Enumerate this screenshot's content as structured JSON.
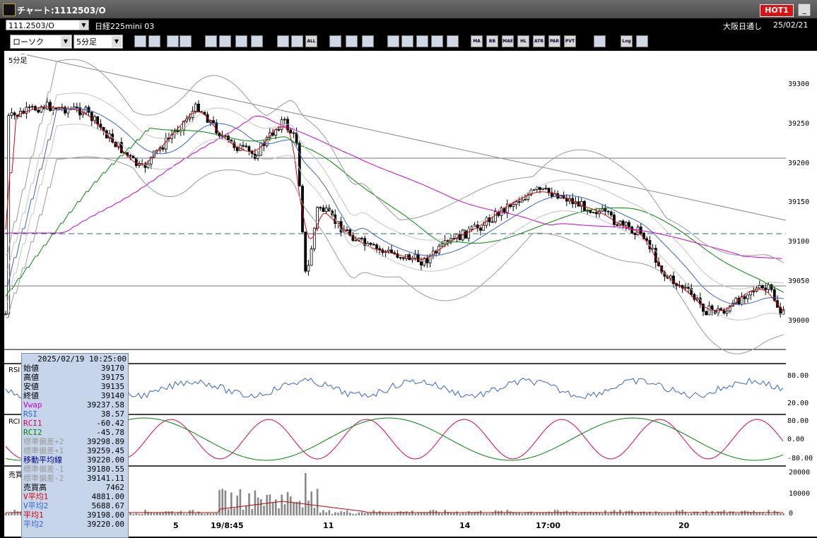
{
  "window": {
    "title": "チャート:1112503/O",
    "hot_label": "HOT1"
  },
  "symbol": {
    "code": "111.2503/O",
    "instrument": "日経225mini 03",
    "session": "大阪日通し",
    "date": "25/02/21"
  },
  "toolbar": {
    "chart_type": "ローソク",
    "interval": "5分足",
    "buttons": [
      "zoom-icon",
      "crosshair-icon",
      "draw-line-icon",
      "erase-icon",
      "cursor-icon",
      "undo-icon",
      "notes-icon",
      "trash-icon",
      "candle-icon",
      "bar-icon",
      "ALL",
      "tools-icon",
      "wrench-icon",
      "palette-icon",
      "import-icon",
      "search-icon",
      "indicator-icon",
      "strike-icon",
      "info-icon",
      "MA",
      "BB",
      "MAE",
      "HL",
      "ATR",
      "PAR",
      "PVT",
      "window-icon",
      "Log",
      "export-icon"
    ]
  },
  "main_chart": {
    "interval_label": "5分足",
    "y_ticks": [
      "39300",
      "39250",
      "39200",
      "39150",
      "39100",
      "39050",
      "39000"
    ],
    "x_ticks": [
      "5",
      "19/8:45",
      "11",
      "14",
      "17:00",
      "20"
    ]
  },
  "rsi_panel": {
    "label": "RSI",
    "y_ticks": [
      "80.00",
      "20.00"
    ]
  },
  "rci_panel": {
    "label": "RCI",
    "y_ticks": [
      "80.00",
      "0.00",
      "-80.00"
    ]
  },
  "volume_panel": {
    "label": "売買",
    "y_ticks": [
      "20000",
      "10000",
      "0"
    ]
  },
  "info_panel": {
    "timestamp": "2025/02/19  10:25:00",
    "rows": [
      {
        "label": "始値",
        "value": "39170",
        "color": "#000000"
      },
      {
        "label": "高値",
        "value": "39175",
        "color": "#000000"
      },
      {
        "label": "安値",
        "value": "39135",
        "color": "#000000"
      },
      {
        "label": "終値",
        "value": "39140",
        "color": "#000000"
      },
      {
        "label": "Vwap",
        "value": "39237.58",
        "color": "#cc00cc"
      },
      {
        "label": "RSI",
        "value": "38.57",
        "color": "#3366cc"
      },
      {
        "label": "RCI1",
        "value": "-60.42",
        "color": "#dd0055"
      },
      {
        "label": "RCI2",
        "value": "-45.78",
        "color": "#008800"
      },
      {
        "label": "標準偏差+2",
        "value": "39298.89",
        "color": "#9a9a9a"
      },
      {
        "label": "標準偏差+1",
        "value": "39259.45",
        "color": "#9a9a9a"
      },
      {
        "label": "移動平均線",
        "value": "39220.00",
        "color": "#000088"
      },
      {
        "label": "標準偏差-1",
        "value": "39180.55",
        "color": "#9a9a9a"
      },
      {
        "label": "標準偏差-2",
        "value": "39141.11",
        "color": "#9a9a9a"
      },
      {
        "label": "売買高",
        "value": "7462",
        "color": "#000000"
      },
      {
        "label": "V平均1",
        "value": "4881.00",
        "color": "#dd0000"
      },
      {
        "label": "V平均2",
        "value": "5688.67",
        "color": "#3366cc"
      },
      {
        "label": "平均1",
        "value": "39198.00",
        "color": "#dd0000"
      },
      {
        "label": "平均2",
        "value": "39220.00",
        "color": "#3366cc"
      }
    ]
  },
  "colors": {
    "up": "#ffffff",
    "down": "#000000",
    "ma_short": "#dd0000",
    "ma_mid": "#3366cc",
    "ma_long": "#008800",
    "vwap": "#cc00cc",
    "bands": "#9a9a9a",
    "rsi": "#3366cc",
    "rci1": "#dd0055",
    "rci2": "#008800"
  }
}
